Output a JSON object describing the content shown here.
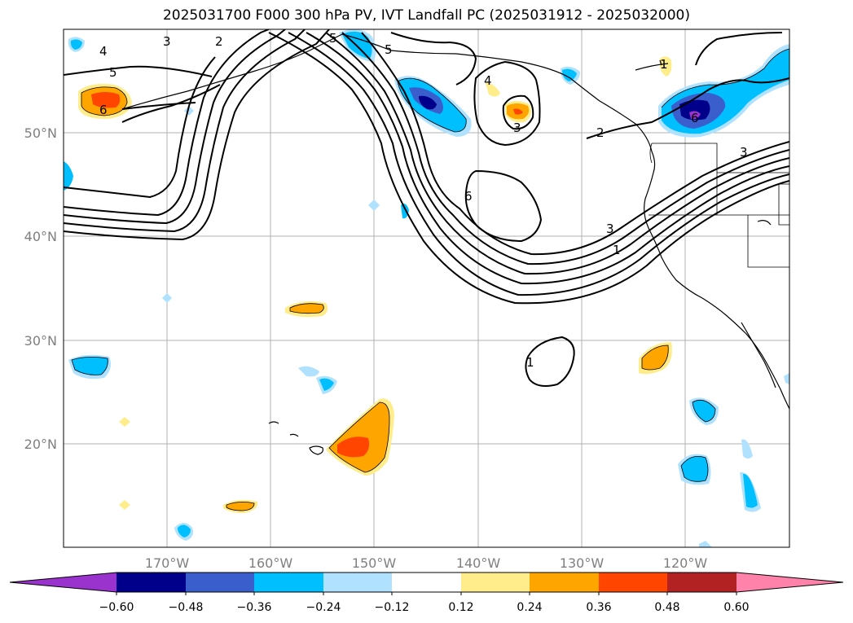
{
  "title": "2025031700 F000 300 hPa PV, IVT Landfall PC (2025031912 - 2025032000)",
  "map": {
    "lon_labels": [
      "170°W",
      "160°W",
      "150°W",
      "140°W",
      "130°W",
      "120°W"
    ],
    "lat_labels": [
      "50°N",
      "40°N",
      "30°N",
      "20°N"
    ],
    "contour_labels": [
      "4",
      "3",
      "2",
      "5",
      "6",
      "5",
      "5",
      "4",
      "3",
      "6",
      "3",
      "2",
      "3",
      "1",
      "1",
      "1",
      "6"
    ]
  },
  "colorbar": {
    "ticks": [
      "−0.60",
      "−0.48",
      "−0.36",
      "−0.24",
      "−0.12",
      "0.12",
      "0.24",
      "0.36",
      "0.48",
      "0.60"
    ],
    "colors": [
      "#9a32cd",
      "#00008b",
      "#3a5fcd",
      "#00bfff",
      "#b0e2ff",
      "#ffffff",
      "#ffec8b",
      "#ffa500",
      "#ff4500",
      "#b22222",
      "#ff82ab"
    ]
  }
}
